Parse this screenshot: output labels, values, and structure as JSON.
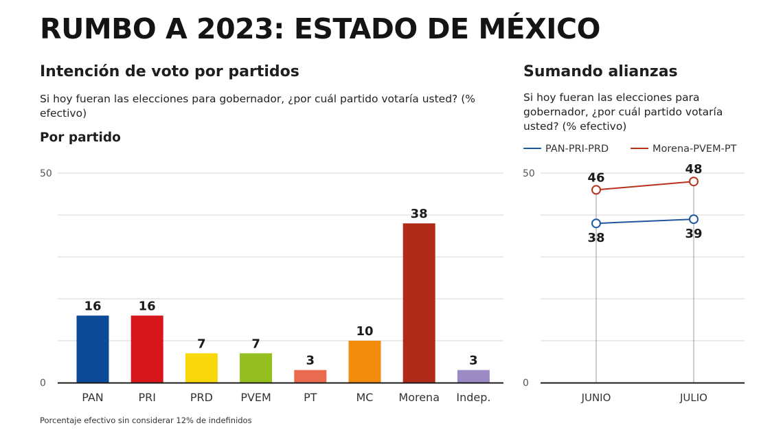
{
  "header": {
    "title": "RUMBO A 2023: ESTADO DE MÉXICO"
  },
  "left_panel": {
    "title": "Intención de voto por partidos",
    "question": "Si hoy fueran las elecciones para gobernador, ¿por cuál partido votaría usted? (% efectivo)",
    "section_label": "Por partido"
  },
  "right_panel": {
    "title": "Sumando alianzas",
    "question": "Si hoy fueran las elecciones para gobernador, ¿por cuál partido votaría usted? (% efectivo)"
  },
  "footnote": "Porcentaje efectivo sin considerar 12% de indefinidos",
  "colors": {
    "PAN": "#0a4a97",
    "PRI": "#d7151c",
    "PRD": "#f8d80a",
    "PVEM": "#93c01f",
    "PT": "#ea6a50",
    "MC": "#f28c0f",
    "Morena": "#b12a17",
    "Indep.": "#9b8ac4",
    "PAN-PRI-PRD": "#1f56a0",
    "Morena-PVEM-PT": "#b8311c"
  },
  "chart_data": [
    {
      "type": "bar",
      "categories": [
        "PAN",
        "PRI",
        "PRD",
        "PVEM",
        "PT",
        "MC",
        "Morena",
        "Indep."
      ],
      "values": [
        16,
        16,
        7,
        7,
        3,
        10,
        38,
        3
      ],
      "ylim": [
        0,
        50
      ],
      "y_tick_labels": [
        "0",
        "50"
      ],
      "gridlines": [
        0,
        10,
        20,
        30,
        40,
        50
      ],
      "grid": true,
      "data_labels": true
    },
    {
      "type": "line",
      "x": [
        "JUNIO",
        "JULIO"
      ],
      "series": [
        {
          "name": "PAN-PRI-PRD",
          "values": [
            38,
            39
          ],
          "label_position": "below"
        },
        {
          "name": "Morena-PVEM-PT",
          "values": [
            46,
            48
          ],
          "label_position": "above"
        }
      ],
      "ylim": [
        0,
        50
      ],
      "y_tick_labels": [
        "0",
        "50"
      ],
      "gridlines": [
        0,
        10,
        20,
        30,
        40,
        50
      ],
      "grid": true,
      "legend_position": "top",
      "markers": "hollow-circle"
    }
  ]
}
